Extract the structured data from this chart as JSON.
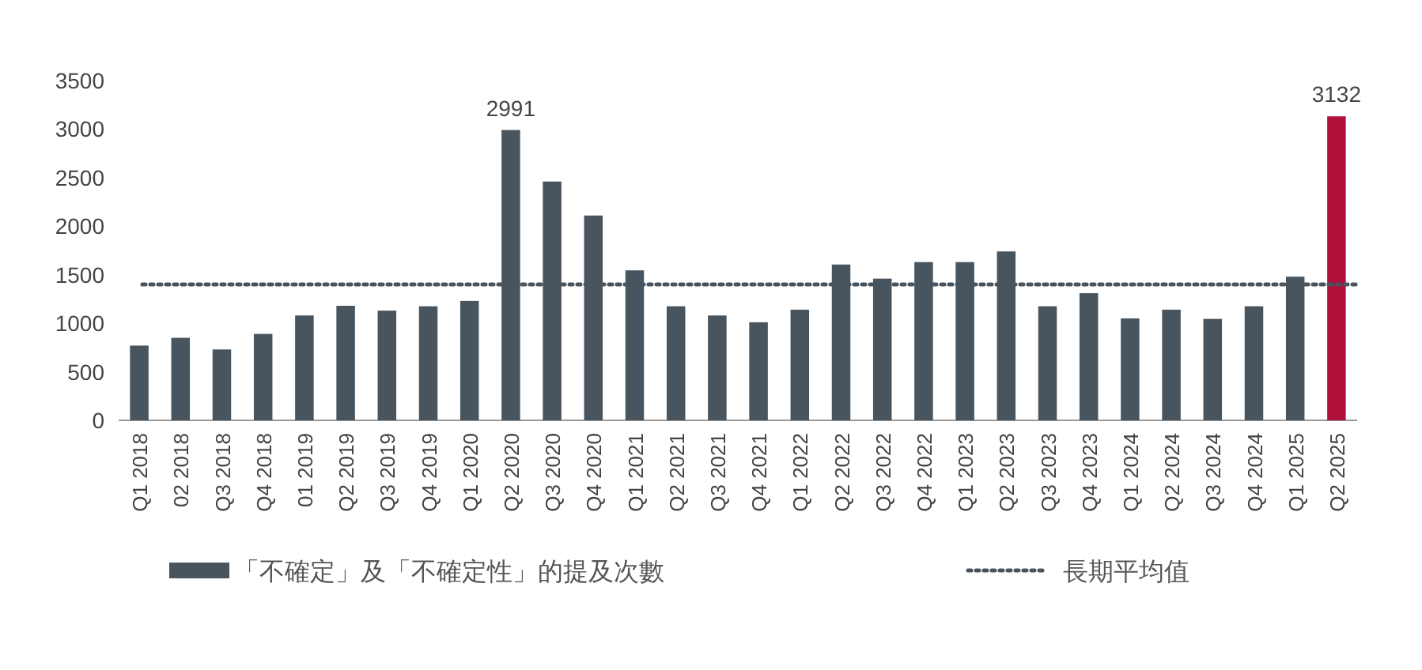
{
  "chart_data": {
    "type": "bar",
    "categories": [
      "Q1 2018",
      "02 2018",
      "Q3 2018",
      "Q4 2018",
      "01 2019",
      "Q2 2019",
      "Q3 2019",
      "Q4 2019",
      "Q1 2020",
      "Q2 2020",
      "Q3 2020",
      "Q4 2020",
      "Q1 2021",
      "Q2 2021",
      "Q3 2021",
      "Q4 2021",
      "Q1 2022",
      "Q2 2022",
      "Q3 2022",
      "Q4 2022",
      "Q1 2023",
      "Q2 2023",
      "Q3 2023",
      "Q4 2023",
      "Q1 2024",
      "Q2 2024",
      "Q3 2024",
      "Q4 2024",
      "Q1 2025",
      "Q2 2025"
    ],
    "series": [
      {
        "name": "「不確定」及「不確定性」的提及次數",
        "color": "#48545e",
        "values": [
          770,
          850,
          730,
          890,
          1080,
          1180,
          1130,
          1175,
          1230,
          2991,
          2460,
          2110,
          1545,
          1175,
          1080,
          1010,
          1140,
          1605,
          1460,
          1630,
          1630,
          1740,
          1175,
          1310,
          1050,
          1140,
          1045,
          1175,
          1480,
          3132
        ],
        "colors": [
          "#48545e",
          "#48545e",
          "#48545e",
          "#48545e",
          "#48545e",
          "#48545e",
          "#48545e",
          "#48545e",
          "#48545e",
          "#48545e",
          "#48545e",
          "#48545e",
          "#48545e",
          "#48545e",
          "#48545e",
          "#48545e",
          "#48545e",
          "#48545e",
          "#48545e",
          "#48545e",
          "#48545e",
          "#48545e",
          "#48545e",
          "#48545e",
          "#48545e",
          "#48545e",
          "#48545e",
          "#48545e",
          "#48545e",
          "#b0103a"
        ],
        "value_labels": [
          null,
          null,
          null,
          null,
          null,
          null,
          null,
          null,
          null,
          "2991",
          null,
          null,
          null,
          null,
          null,
          null,
          null,
          null,
          null,
          null,
          null,
          null,
          null,
          null,
          null,
          null,
          null,
          null,
          null,
          "3132"
        ]
      }
    ],
    "ylim": [
      0,
      3500
    ],
    "yticks": [
      0,
      500,
      1000,
      1500,
      2000,
      2500,
      3000,
      3500
    ],
    "ref_lines": [
      {
        "axis": "y",
        "value": 1400,
        "label": "長期平均值",
        "color": "#48545e",
        "line_style": "dotted"
      }
    ],
    "grid": false,
    "legend": "bottom"
  }
}
